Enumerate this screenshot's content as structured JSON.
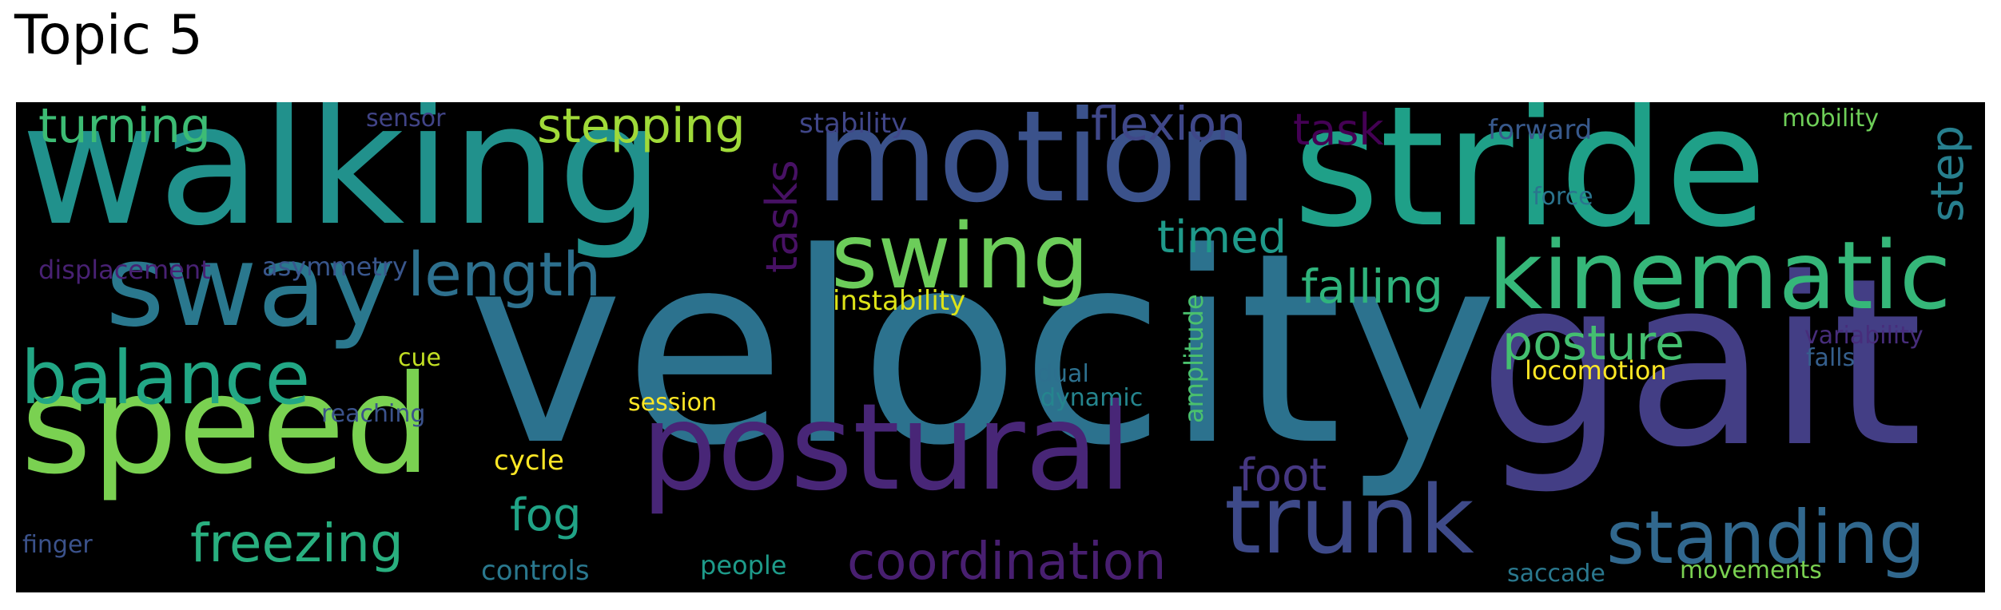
{
  "title": "Topic 5",
  "words": [
    {
      "text": "velocity",
      "color": "#2c728e"
    },
    {
      "text": "gait",
      "color": "#433e85"
    },
    {
      "text": "walking",
      "color": "#21918c"
    },
    {
      "text": "stride",
      "color": "#1fa088"
    },
    {
      "text": "motion",
      "color": "#3b528b"
    },
    {
      "text": "speed",
      "color": "#7ad151"
    },
    {
      "text": "postural",
      "color": "#482677"
    },
    {
      "text": "sway",
      "color": "#2a788e"
    },
    {
      "text": "kinematic",
      "color": "#35b779"
    },
    {
      "text": "trunk",
      "color": "#3e4a89"
    },
    {
      "text": "swing",
      "color": "#6ccd5a"
    },
    {
      "text": "balance",
      "color": "#22a785"
    },
    {
      "text": "standing",
      "color": "#31688e"
    },
    {
      "text": "coordination",
      "color": "#481f70"
    },
    {
      "text": "length",
      "color": "#2d708e"
    },
    {
      "text": "freezing",
      "color": "#29af7f"
    },
    {
      "text": "posture",
      "color": "#44bf70"
    },
    {
      "text": "stepping",
      "color": "#a0da39"
    },
    {
      "text": "turning",
      "color": "#3dbc74"
    },
    {
      "text": "flexion",
      "color": "#3f4788"
    },
    {
      "text": "falling",
      "color": "#2fb47c"
    },
    {
      "text": "timed",
      "color": "#1f9a8a"
    },
    {
      "text": "foot",
      "color": "#453781"
    },
    {
      "text": "fog",
      "color": "#20a386"
    },
    {
      "text": "task",
      "color": "#440154"
    },
    {
      "text": "tasks",
      "color": "#471164"
    },
    {
      "text": "step",
      "color": "#277f8e"
    },
    {
      "text": "instability",
      "color": "#dde318"
    },
    {
      "text": "locomotion",
      "color": "#fde725"
    },
    {
      "text": "displacement",
      "color": "#482173"
    },
    {
      "text": "asymmetry",
      "color": "#39568c"
    },
    {
      "text": "amplitude",
      "color": "#4ac16d"
    },
    {
      "text": "forward",
      "color": "#38598c"
    },
    {
      "text": "stability",
      "color": "#404688"
    },
    {
      "text": "sensor",
      "color": "#414487"
    },
    {
      "text": "mobility",
      "color": "#6ece58"
    },
    {
      "text": "force",
      "color": "#2b748e"
    },
    {
      "text": "variability",
      "color": "#472d7b"
    },
    {
      "text": "falls",
      "color": "#355f8d"
    },
    {
      "text": "cue",
      "color": "#c2df23"
    },
    {
      "text": "reaching",
      "color": "#3b528b"
    },
    {
      "text": "session",
      "color": "#fde725"
    },
    {
      "text": "dual",
      "color": "#2d708e"
    },
    {
      "text": "dynamic",
      "color": "#25858e"
    },
    {
      "text": "cycle",
      "color": "#fde725"
    },
    {
      "text": "controls",
      "color": "#2a788e"
    },
    {
      "text": "people",
      "color": "#1e9b8a"
    },
    {
      "text": "finger",
      "color": "#3b528b"
    },
    {
      "text": "saccade",
      "color": "#2a788e"
    },
    {
      "text": "movements",
      "color": "#7ad151"
    }
  ]
}
